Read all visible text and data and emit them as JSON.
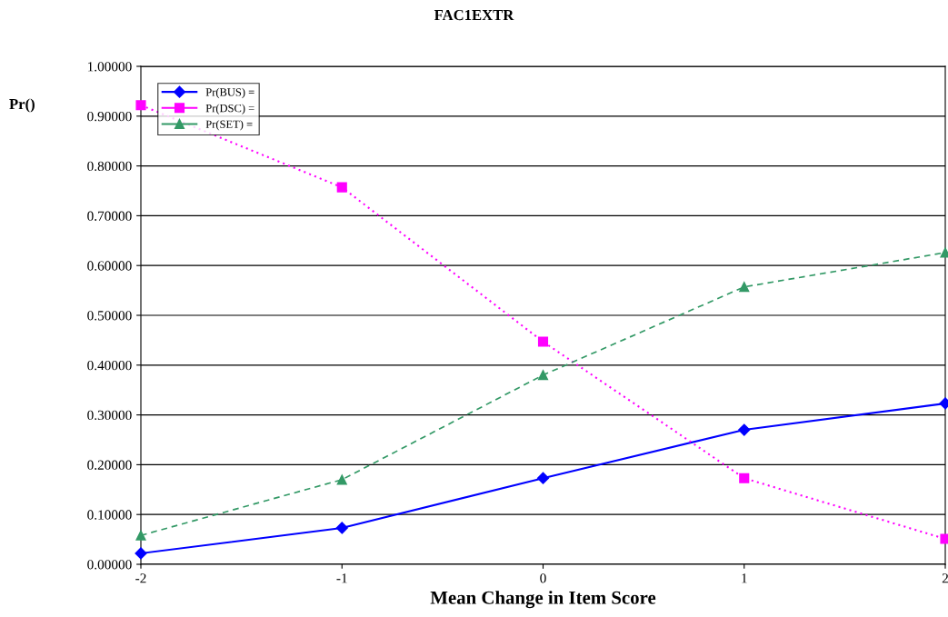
{
  "chart_data": {
    "type": "line",
    "title": "FAC1EXTR",
    "xlabel": "Mean Change in Item Score",
    "ylabel": "Pr()",
    "x": [
      -2,
      -1,
      0,
      1,
      2
    ],
    "series": [
      {
        "name": "Pr(BUS) =",
        "color": "#0000ff",
        "marker": "diamond",
        "line_style": "solid",
        "values": [
          0.022,
          0.073,
          0.173,
          0.27,
          0.323
        ]
      },
      {
        "name": "Pr(DSC) =",
        "color": "#ff00ff",
        "marker": "square",
        "line_style": "dotted",
        "values": [
          0.922,
          0.757,
          0.447,
          0.173,
          0.051
        ]
      },
      {
        "name": "Pr(SET) =",
        "color": "#339966",
        "marker": "triangle",
        "line_style": "dashed",
        "values": [
          0.058,
          0.17,
          0.38,
          0.557,
          0.626
        ]
      }
    ],
    "xlim": [
      -2,
      2
    ],
    "xticks": [
      -2,
      -1,
      0,
      1,
      2
    ],
    "ylim": [
      0,
      1
    ],
    "yticks": [
      {
        "value": 0,
        "label": "0.00000"
      },
      {
        "value": 0.1,
        "label": "0.10000"
      },
      {
        "value": 0.2,
        "label": "0.20000"
      },
      {
        "value": 0.3,
        "label": "0.30000"
      },
      {
        "value": 0.4,
        "label": "0.40000"
      },
      {
        "value": 0.5,
        "label": "0.50000"
      },
      {
        "value": 0.6,
        "label": "0.60000"
      },
      {
        "value": 0.7,
        "label": "0.70000"
      },
      {
        "value": 0.8,
        "label": "0.80000"
      },
      {
        "value": 0.9,
        "label": "0.90000"
      },
      {
        "value": 1,
        "label": "1.00000"
      }
    ],
    "grid": "y",
    "legend": "top left"
  }
}
